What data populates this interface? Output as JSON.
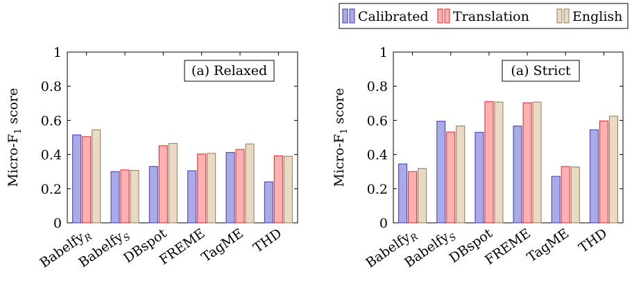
{
  "legend": [
    {
      "label": "Calibrated",
      "fill": "#aaaae6",
      "stroke": "#3a3ab8"
    },
    {
      "label": "Translation",
      "fill": "#ffb0b0",
      "stroke": "#e0282c"
    },
    {
      "label": "English",
      "fill": "#ead9c3",
      "stroke": "#8f7a5c"
    }
  ],
  "chart_data": [
    {
      "type": "bar",
      "title": "(a) Relaxed",
      "ylabel": "Micro-F1 score",
      "xlabel": "",
      "ylim": [
        0,
        1
      ],
      "yticks": [
        "0",
        "0.2",
        "0.4",
        "0.6",
        "0.8",
        "1"
      ],
      "categories": [
        {
          "base": "Babelfy",
          "sub": "R"
        },
        {
          "base": "Babelfy",
          "sub": "S"
        },
        {
          "base": "DBspot",
          "sub": ""
        },
        {
          "base": "FREME",
          "sub": ""
        },
        {
          "base": "TagME",
          "sub": ""
        },
        {
          "base": "THD",
          "sub": ""
        }
      ],
      "series": [
        {
          "name": "Calibrated",
          "values": [
            0.515,
            0.3,
            0.33,
            0.305,
            0.412,
            0.24
          ]
        },
        {
          "name": "Translation",
          "values": [
            0.505,
            0.31,
            0.452,
            0.403,
            0.43,
            0.393
          ]
        },
        {
          "name": "English",
          "values": [
            0.545,
            0.307,
            0.465,
            0.407,
            0.462,
            0.39
          ]
        }
      ],
      "grid": false,
      "legend_position": "top"
    },
    {
      "type": "bar",
      "title": "(a) Strict",
      "ylabel": "Micro-F1 score",
      "xlabel": "",
      "ylim": [
        0,
        1
      ],
      "yticks": [
        "0",
        "0.2",
        "0.4",
        "0.6",
        "0.8",
        "1"
      ],
      "categories": [
        {
          "base": "Babelfy",
          "sub": "R"
        },
        {
          "base": "Babelfy",
          "sub": "S"
        },
        {
          "base": "DBspot",
          "sub": ""
        },
        {
          "base": "FREME",
          "sub": ""
        },
        {
          "base": "TagME",
          "sub": ""
        },
        {
          "base": "THD",
          "sub": ""
        }
      ],
      "series": [
        {
          "name": "Calibrated",
          "values": [
            0.345,
            0.595,
            0.53,
            0.567,
            0.272,
            0.545
          ]
        },
        {
          "name": "Translation",
          "values": [
            0.3,
            0.532,
            0.71,
            0.703,
            0.33,
            0.597
          ]
        },
        {
          "name": "English",
          "values": [
            0.318,
            0.567,
            0.707,
            0.707,
            0.327,
            0.625
          ]
        }
      ],
      "grid": false,
      "legend_position": "top"
    }
  ]
}
